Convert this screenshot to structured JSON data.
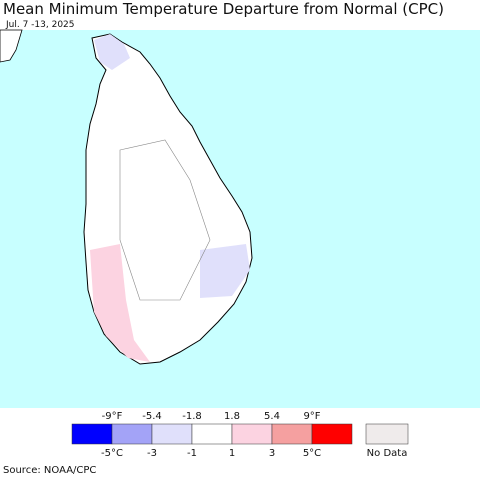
{
  "header": {
    "title": "Mean Minimum Temperature Departure from Normal (CPC)",
    "date": "Jul. 7 -13, 2025"
  },
  "legend": {
    "f_labels": [
      "-9°F",
      "-5.4",
      "-1.8",
      "1.8",
      "5.4",
      "9°F"
    ],
    "c_labels": [
      "-5°C",
      "-3",
      "-1",
      "1",
      "3",
      "5°C"
    ],
    "colors": [
      "#0000ff",
      "#a3a3f7",
      "#e0e0fb",
      "#ffffff",
      "#fcd3e1",
      "#f5a0a0",
      "#ff0000"
    ],
    "no_data_label": "No Data",
    "no_data_color": "#efebeb"
  },
  "footer": {
    "source": "Source: NOAA/CPC"
  }
}
